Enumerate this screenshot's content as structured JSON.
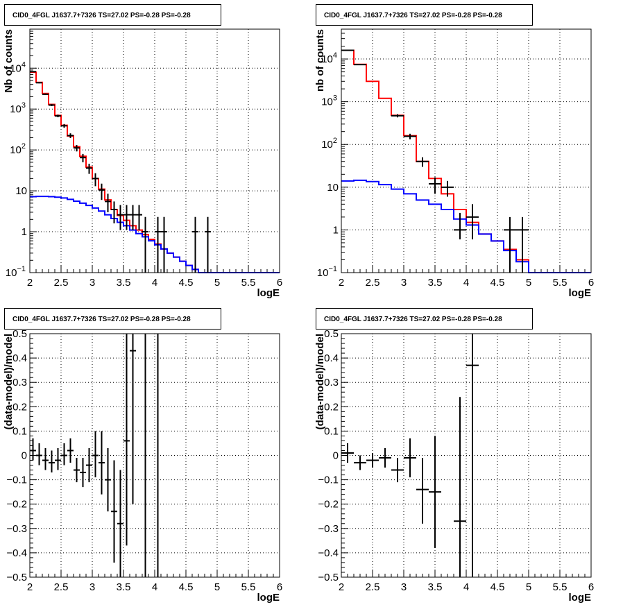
{
  "colors": {
    "model": "#ff0000",
    "background": "#0000ff",
    "data": "#000000"
  },
  "chart_data": [
    {
      "type": "step-histogram",
      "title": "CID0_4FGL J1637.7+7326 TS=27.02 PS=-0.28 PS=-0.28",
      "xlabel": "logE",
      "ylabel": "Nb of counts",
      "xlim": [
        2,
        6
      ],
      "ylim": [
        0.1,
        90000
      ],
      "yscale": "log",
      "grid": true,
      "xticks": [
        "2",
        "2.5",
        "3",
        "3.5",
        "4",
        "4.5",
        "5",
        "5.5",
        "6"
      ],
      "yticks": [
        {
          "v": 0.1,
          "base": "10",
          "exp": "−1"
        },
        {
          "v": 1,
          "label": "1"
        },
        {
          "v": 10,
          "label": "10"
        },
        {
          "v": 100,
          "base": "10",
          "exp": "2"
        },
        {
          "v": 1000,
          "base": "10",
          "exp": "3"
        },
        {
          "v": 10000,
          "base": "10",
          "exp": "4"
        }
      ],
      "bin_edges": [
        2.0,
        2.1,
        2.2,
        2.3,
        2.4,
        2.5,
        2.6,
        2.7,
        2.8,
        2.9,
        3.0,
        3.1,
        3.2,
        3.3,
        3.4,
        3.5,
        3.6,
        3.7,
        3.8,
        3.9,
        4.0,
        4.1,
        4.2,
        4.3,
        4.4,
        4.5,
        4.6,
        4.7,
        4.8,
        4.9,
        5.0,
        5.1,
        5.2,
        5.3,
        5.4,
        5.5,
        5.6,
        5.7,
        5.8,
        5.9,
        6.0
      ],
      "series": [
        {
          "name": "",
          "color_key": "model",
          "values": [
            8000,
            4500,
            2400,
            1300,
            700,
            400,
            220,
            120,
            70,
            38,
            20,
            11,
            6,
            3.5,
            2.5,
            1.9,
            1.4,
            1.1,
            0.85,
            0.65,
            0.5,
            0.38,
            0.3,
            0.24,
            0.19,
            0.15,
            0.12,
            0.1,
            0.1,
            0.1,
            0.1,
            0.1,
            0.1,
            0.1,
            0.1,
            0.1,
            0.1,
            0.1,
            0.1,
            0.1
          ]
        },
        {
          "name": "",
          "color_key": "background",
          "values": [
            7.2,
            7.3,
            7.3,
            7.2,
            7.0,
            6.7,
            6.2,
            5.6,
            5.0,
            4.4,
            3.8,
            3.2,
            2.6,
            2.1,
            1.7,
            1.4,
            1.1,
            0.9,
            0.75,
            0.6,
            0.48,
            0.38,
            0.3,
            0.24,
            0.19,
            0.15,
            0.12,
            0.1,
            0.1,
            0.1,
            0.1,
            0.1,
            0.1,
            0.1,
            0.1,
            0.1,
            0.1,
            0.1,
            0.1,
            0.1
          ]
        }
      ],
      "points": [
        {
          "x": 2.05,
          "y": 8200,
          "xerr": 0.05,
          "ylo": 8000,
          "yhi": 8400
        },
        {
          "x": 2.15,
          "y": 4400,
          "xerr": 0.05,
          "ylo": 4250,
          "yhi": 4550
        },
        {
          "x": 2.25,
          "y": 2300,
          "xerr": 0.05,
          "ylo": 2200,
          "yhi": 2400
        },
        {
          "x": 2.35,
          "y": 1250,
          "xerr": 0.05,
          "ylo": 1180,
          "yhi": 1320
        },
        {
          "x": 2.45,
          "y": 680,
          "xerr": 0.05,
          "ylo": 630,
          "yhi": 730
        },
        {
          "x": 2.55,
          "y": 390,
          "xerr": 0.05,
          "ylo": 350,
          "yhi": 430
        },
        {
          "x": 2.65,
          "y": 225,
          "xerr": 0.05,
          "ylo": 195,
          "yhi": 255
        },
        {
          "x": 2.75,
          "y": 112,
          "xerr": 0.05,
          "ylo": 92,
          "yhi": 132
        },
        {
          "x": 2.85,
          "y": 65,
          "xerr": 0.05,
          "ylo": 50,
          "yhi": 80
        },
        {
          "x": 2.95,
          "y": 36,
          "xerr": 0.05,
          "ylo": 26,
          "yhi": 46
        },
        {
          "x": 3.05,
          "y": 20,
          "xerr": 0.05,
          "ylo": 13,
          "yhi": 27
        },
        {
          "x": 3.15,
          "y": 10.5,
          "xerr": 0.05,
          "ylo": 6,
          "yhi": 15
        },
        {
          "x": 3.25,
          "y": 5.5,
          "xerr": 0.05,
          "ylo": 3,
          "yhi": 8.5
        },
        {
          "x": 3.35,
          "y": 3.5,
          "xerr": 0.05,
          "ylo": 1.6,
          "yhi": 5.5
        },
        {
          "x": 3.45,
          "y": 2.6,
          "xerr": 0.05,
          "ylo": 1.1,
          "yhi": 4.5
        },
        {
          "x": 3.55,
          "y": 2.6,
          "xerr": 0.05,
          "ylo": 1.1,
          "yhi": 4.5
        },
        {
          "x": 3.65,
          "y": 2.6,
          "xerr": 0.05,
          "ylo": 1.1,
          "yhi": 4.5
        },
        {
          "x": 3.75,
          "y": 2.6,
          "xerr": 0.05,
          "ylo": 1.1,
          "yhi": 4.5
        },
        {
          "x": 3.85,
          "y": 1.0,
          "xerr": 0.05,
          "ylo": 0.1,
          "yhi": 2.3
        },
        {
          "x": 4.05,
          "y": 1.0,
          "xerr": 0.05,
          "ylo": 0.1,
          "yhi": 2.3
        },
        {
          "x": 4.15,
          "y": 1.0,
          "xerr": 0.05,
          "ylo": 0.1,
          "yhi": 2.3
        },
        {
          "x": 4.65,
          "y": 1.0,
          "xerr": 0.05,
          "ylo": 0.1,
          "yhi": 2.3
        },
        {
          "x": 4.85,
          "y": 1.0,
          "xerr": 0.05,
          "ylo": 0.1,
          "yhi": 2.3
        }
      ]
    },
    {
      "type": "step-histogram",
      "title": "CID0_4FGL J1637.7+7326 TS=27.02 PS=-0.28 PS=-0.28",
      "xlabel": "logE",
      "ylabel": "nb of counts",
      "xlim": [
        2,
        6
      ],
      "ylim": [
        0.1,
        50000
      ],
      "yscale": "log",
      "grid": true,
      "xticks": [
        "2",
        "2.5",
        "3",
        "3.5",
        "4",
        "4.5",
        "5",
        "5.5",
        "6"
      ],
      "yticks": [
        {
          "v": 0.1,
          "base": "10",
          "exp": "−1"
        },
        {
          "v": 1,
          "label": "1"
        },
        {
          "v": 10,
          "label": "10"
        },
        {
          "v": 100,
          "base": "10",
          "exp": "2"
        },
        {
          "v": 1000,
          "base": "10",
          "exp": "3"
        },
        {
          "v": 10000,
          "base": "10",
          "exp": "4"
        }
      ],
      "bin_edges": [
        2.0,
        2.2,
        2.4,
        2.6,
        2.8,
        3.0,
        3.2,
        3.4,
        3.6,
        3.8,
        4.0,
        4.2,
        4.4,
        4.6,
        4.8,
        5.0,
        5.2,
        5.4,
        5.6,
        5.8,
        6.0
      ],
      "series": [
        {
          "name": "",
          "color_key": "model",
          "values": [
            16000,
            7500,
            3000,
            1200,
            480,
            160,
            40,
            16,
            7,
            3,
            1.5,
            0.8,
            0.55,
            0.35,
            0.2,
            0.1,
            0.1,
            0.1,
            0.1,
            0.1
          ]
        },
        {
          "name": "",
          "color_key": "background",
          "values": [
            14,
            14.5,
            13.5,
            11.5,
            9,
            7,
            5,
            4,
            3,
            1.8,
            1.3,
            0.8,
            0.55,
            0.33,
            0.18,
            0.1,
            0.1,
            0.1,
            0.1,
            0.1
          ]
        }
      ],
      "points": [
        {
          "x": 2.1,
          "y": 16000,
          "xerr": 0.1,
          "ylo": 15700,
          "yhi": 16300
        },
        {
          "x": 2.3,
          "y": 7400,
          "xerr": 0.1,
          "ylo": 7200,
          "yhi": 7600
        },
        {
          "x": 2.9,
          "y": 470,
          "xerr": 0.1,
          "ylo": 430,
          "yhi": 510
        },
        {
          "x": 3.1,
          "y": 155,
          "xerr": 0.1,
          "ylo": 132,
          "yhi": 178
        },
        {
          "x": 3.3,
          "y": 40,
          "xerr": 0.1,
          "ylo": 30,
          "yhi": 50
        },
        {
          "x": 3.5,
          "y": 12,
          "xerr": 0.1,
          "ylo": 7,
          "yhi": 17
        },
        {
          "x": 3.7,
          "y": 10,
          "xerr": 0.1,
          "ylo": 6,
          "yhi": 14
        },
        {
          "x": 3.9,
          "y": 1.0,
          "xerr": 0.1,
          "ylo": 0.6,
          "yhi": 2.5
        },
        {
          "x": 4.1,
          "y": 2.0,
          "xerr": 0.1,
          "ylo": 0.6,
          "yhi": 4.0
        },
        {
          "x": 4.7,
          "y": 1.0,
          "xerr": 0.1,
          "ylo": 0.1,
          "yhi": 2.0
        },
        {
          "x": 4.9,
          "y": 1.0,
          "xerr": 0.1,
          "ylo": 0.1,
          "yhi": 2.0
        }
      ]
    },
    {
      "type": "scatter",
      "title": "CID0_4FGL J1637.7+7326 TS=27.02 PS=-0.28 PS=-0.28",
      "xlabel": "logE",
      "ylabel": "(data-model)/model",
      "xlim": [
        2,
        6
      ],
      "ylim": [
        -0.5,
        0.5
      ],
      "yscale": "linear",
      "grid": true,
      "xticks": [
        "2",
        "2.5",
        "3",
        "3.5",
        "4",
        "4.5",
        "5",
        "5.5",
        "6"
      ],
      "yticks": [
        {
          "v": -0.5,
          "label": "−0.5"
        },
        {
          "v": -0.4,
          "label": "−0.4"
        },
        {
          "v": -0.3,
          "label": "−0.3"
        },
        {
          "v": -0.2,
          "label": "−0.2"
        },
        {
          "v": -0.1,
          "label": "−0.1"
        },
        {
          "v": 0,
          "label": "0"
        },
        {
          "v": 0.1,
          "label": "0.1"
        },
        {
          "v": 0.2,
          "label": "0.2"
        },
        {
          "v": 0.3,
          "label": "0.3"
        },
        {
          "v": 0.4,
          "label": "0.4"
        },
        {
          "v": 0.5,
          "label": "0.5"
        }
      ],
      "points": [
        {
          "x": 2.05,
          "y": 0.02,
          "xerr": 0.05,
          "ylo": -0.02,
          "yhi": 0.07
        },
        {
          "x": 2.15,
          "y": 0.0,
          "xerr": 0.05,
          "ylo": -0.04,
          "yhi": 0.05
        },
        {
          "x": 2.25,
          "y": -0.02,
          "xerr": 0.05,
          "ylo": -0.06,
          "yhi": 0.03
        },
        {
          "x": 2.35,
          "y": -0.03,
          "xerr": 0.05,
          "ylo": -0.07,
          "yhi": 0.02
        },
        {
          "x": 2.45,
          "y": -0.02,
          "xerr": 0.05,
          "ylo": -0.06,
          "yhi": 0.03
        },
        {
          "x": 2.55,
          "y": 0.0,
          "xerr": 0.05,
          "ylo": -0.04,
          "yhi": 0.05
        },
        {
          "x": 2.65,
          "y": 0.02,
          "xerr": 0.05,
          "ylo": -0.03,
          "yhi": 0.07
        },
        {
          "x": 2.75,
          "y": -0.06,
          "xerr": 0.05,
          "ylo": -0.11,
          "yhi": -0.01
        },
        {
          "x": 2.85,
          "y": -0.07,
          "xerr": 0.05,
          "ylo": -0.13,
          "yhi": -0.01
        },
        {
          "x": 2.95,
          "y": -0.04,
          "xerr": 0.05,
          "ylo": -0.11,
          "yhi": 0.03
        },
        {
          "x": 3.05,
          "y": 0.0,
          "xerr": 0.05,
          "ylo": -0.09,
          "yhi": 0.1
        },
        {
          "x": 3.15,
          "y": -0.03,
          "xerr": 0.05,
          "ylo": -0.16,
          "yhi": 0.1
        },
        {
          "x": 3.25,
          "y": -0.1,
          "xerr": 0.05,
          "ylo": -0.23,
          "yhi": 0.03
        },
        {
          "x": 3.35,
          "y": -0.23,
          "xerr": 0.05,
          "ylo": -0.44,
          "yhi": -0.02
        },
        {
          "x": 3.45,
          "y": -0.28,
          "xerr": 0.05,
          "ylo": -0.5,
          "yhi": -0.06
        },
        {
          "x": 3.55,
          "y": 0.06,
          "xerr": 0.05,
          "ylo": -0.37,
          "yhi": 0.5
        },
        {
          "x": 3.65,
          "y": 0.43,
          "xerr": 0.05,
          "ylo": -0.2,
          "yhi": 0.5
        },
        {
          "x": 3.85,
          "y": 0.24,
          "xerr": 0.0,
          "ylo": -0.5,
          "yhi": 0.5
        },
        {
          "x": 4.05,
          "y": 0.25,
          "xerr": 0.0,
          "ylo": -0.5,
          "yhi": 0.5
        }
      ]
    },
    {
      "type": "scatter",
      "title": "CID0_4FGL J1637.7+7326 TS=27.02 PS=-0.28 PS=-0.28",
      "xlabel": "logE",
      "ylabel": "(data-model)/model",
      "xlim": [
        2,
        6
      ],
      "ylim": [
        -0.5,
        0.5
      ],
      "yscale": "linear",
      "grid": true,
      "xticks": [
        "2",
        "2.5",
        "3",
        "3.5",
        "4",
        "4.5",
        "5",
        "5.5",
        "6"
      ],
      "yticks": [
        {
          "v": -0.5,
          "label": "−0.5"
        },
        {
          "v": -0.4,
          "label": "−0.4"
        },
        {
          "v": -0.3,
          "label": "−0.3"
        },
        {
          "v": -0.2,
          "label": "−0.2"
        },
        {
          "v": -0.1,
          "label": "−0.1"
        },
        {
          "v": 0,
          "label": "0"
        },
        {
          "v": 0.1,
          "label": "0.1"
        },
        {
          "v": 0.2,
          "label": "0.2"
        },
        {
          "v": 0.3,
          "label": "0.3"
        },
        {
          "v": 0.4,
          "label": "0.4"
        },
        {
          "v": 0.5,
          "label": "0.5"
        }
      ],
      "points": [
        {
          "x": 2.1,
          "y": 0.01,
          "xerr": 0.1,
          "ylo": -0.03,
          "yhi": 0.05
        },
        {
          "x": 2.3,
          "y": -0.03,
          "xerr": 0.1,
          "ylo": -0.06,
          "yhi": 0.0
        },
        {
          "x": 2.5,
          "y": -0.02,
          "xerr": 0.1,
          "ylo": -0.05,
          "yhi": 0.01
        },
        {
          "x": 2.7,
          "y": -0.01,
          "xerr": 0.1,
          "ylo": -0.05,
          "yhi": 0.03
        },
        {
          "x": 2.9,
          "y": -0.06,
          "xerr": 0.1,
          "ylo": -0.11,
          "yhi": -0.01
        },
        {
          "x": 3.1,
          "y": -0.01,
          "xerr": 0.1,
          "ylo": -0.09,
          "yhi": 0.07
        },
        {
          "x": 3.3,
          "y": -0.14,
          "xerr": 0.1,
          "ylo": -0.28,
          "yhi": -0.01
        },
        {
          "x": 3.5,
          "y": -0.15,
          "xerr": 0.1,
          "ylo": -0.38,
          "yhi": 0.08
        },
        {
          "x": 3.9,
          "y": -0.27,
          "xerr": 0.1,
          "ylo": -0.5,
          "yhi": 0.24
        },
        {
          "x": 4.1,
          "y": 0.37,
          "xerr": 0.1,
          "ylo": -0.5,
          "yhi": 0.5
        }
      ]
    }
  ]
}
